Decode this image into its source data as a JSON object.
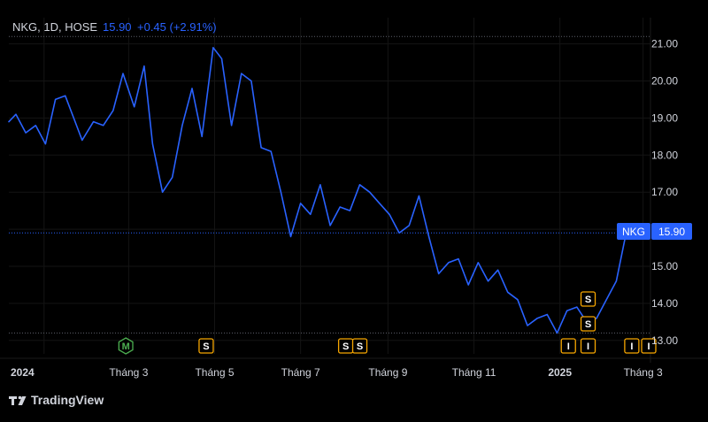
{
  "header": {
    "symbol_info": "NKG, 1D, HOSE",
    "last_price": "15.90",
    "change": "+0.45 (+2.91%)"
  },
  "price_tag": {
    "symbol": "NKG",
    "price": "15.90"
  },
  "branding": {
    "logo_text": "TradingView"
  },
  "colors": {
    "background": "#000000",
    "line": "#2962ff",
    "axis_text": "#d1d4dc",
    "grid": "#2a2e39",
    "event_orange": "#f7a600",
    "event_green": "#4caf50"
  },
  "chart_data": {
    "type": "line",
    "title": "NKG, 1D, HOSE",
    "xlabel": "",
    "ylabel": "",
    "ylim": [
      12.9,
      21.3
    ],
    "yticks": [
      13.0,
      14.0,
      15.0,
      16.0,
      17.0,
      18.0,
      19.0,
      20.0,
      21.0
    ],
    "xticks": [
      {
        "label": "2024",
        "date": "2024-01-01",
        "bold": true
      },
      {
        "label": "Tháng 3",
        "date": "2024-03-01",
        "bold": false
      },
      {
        "label": "Tháng 5",
        "date": "2024-05-01",
        "bold": false
      },
      {
        "label": "Tháng 7",
        "date": "2024-07-01",
        "bold": false
      },
      {
        "label": "Tháng 9",
        "date": "2024-09-01",
        "bold": false
      },
      {
        "label": "Tháng 11",
        "date": "2024-11-01",
        "bold": false
      },
      {
        "label": "2025",
        "date": "2025-01-01",
        "bold": true
      },
      {
        "label": "Tháng 3",
        "date": "2025-03-01",
        "bold": false
      }
    ],
    "x_range": [
      "2023-12-07",
      "2025-03-05"
    ],
    "grid": true,
    "reference_lines": [
      {
        "value": 21.2,
        "style": "dotted"
      },
      {
        "value": 15.9,
        "style": "dotted-blue"
      },
      {
        "value": 13.2,
        "style": "dotted"
      }
    ],
    "series": [
      {
        "x": [
          "2023-12-07",
          "2023-12-12",
          "2023-12-19",
          "2023-12-26",
          "2024-01-02",
          "2024-01-09",
          "2024-01-16",
          "2024-01-22",
          "2024-01-28",
          "2024-02-05",
          "2024-02-12",
          "2024-02-19",
          "2024-02-26",
          "2024-03-05",
          "2024-03-12",
          "2024-03-18",
          "2024-03-25",
          "2024-04-01",
          "2024-04-08",
          "2024-04-15",
          "2024-04-22",
          "2024-04-30",
          "2024-05-06",
          "2024-05-13",
          "2024-05-20",
          "2024-05-27",
          "2024-06-03",
          "2024-06-10",
          "2024-06-17",
          "2024-06-24",
          "2024-07-01",
          "2024-07-08",
          "2024-07-15",
          "2024-07-22",
          "2024-07-29",
          "2024-08-05",
          "2024-08-12",
          "2024-08-19",
          "2024-08-26",
          "2024-09-02",
          "2024-09-09",
          "2024-09-16",
          "2024-09-23",
          "2024-09-30",
          "2024-10-07",
          "2024-10-14",
          "2024-10-21",
          "2024-10-28",
          "2024-11-04",
          "2024-11-11",
          "2024-11-18",
          "2024-11-25",
          "2024-12-02",
          "2024-12-09",
          "2024-12-16",
          "2024-12-23",
          "2024-12-30",
          "2025-01-06",
          "2025-01-13",
          "2025-01-20",
          "2025-01-27",
          "2025-02-03",
          "2025-02-10",
          "2025-02-17",
          "2025-02-24",
          "2025-03-03"
        ],
        "values": [
          18.9,
          19.1,
          18.6,
          18.8,
          18.3,
          19.5,
          19.6,
          19.0,
          18.4,
          18.9,
          18.8,
          19.2,
          20.2,
          19.3,
          20.4,
          18.3,
          17.0,
          17.4,
          18.8,
          19.8,
          18.5,
          20.9,
          20.6,
          18.8,
          20.2,
          20.0,
          18.2,
          18.1,
          17.0,
          15.8,
          16.7,
          16.4,
          17.2,
          16.1,
          16.6,
          16.5,
          17.2,
          17.0,
          16.7,
          16.4,
          15.9,
          16.1,
          16.9,
          15.8,
          14.8,
          15.1,
          15.2,
          14.5,
          15.1,
          14.6,
          14.9,
          14.3,
          14.1,
          13.4,
          13.6,
          13.7,
          13.2,
          13.8,
          13.9,
          13.5,
          13.6,
          14.1,
          14.6,
          15.9,
          15.9,
          15.9
        ]
      }
    ],
    "events": [
      {
        "label": "M",
        "date": "2024-02-28",
        "color": "green",
        "row": 0
      },
      {
        "label": "S",
        "date": "2024-04-25",
        "color": "orange",
        "row": 0
      },
      {
        "label": "S",
        "date": "2024-08-02",
        "color": "orange",
        "row": 0
      },
      {
        "label": "S",
        "date": "2024-08-12",
        "color": "orange",
        "row": 0
      },
      {
        "label": "S",
        "date": "2025-01-21",
        "color": "orange",
        "row": 2
      },
      {
        "label": "S",
        "date": "2025-01-21",
        "color": "orange",
        "row": 1
      },
      {
        "label": "I",
        "date": "2025-01-07",
        "color": "orange",
        "row": 0
      },
      {
        "label": "I",
        "date": "2025-01-21",
        "color": "orange",
        "row": 0
      },
      {
        "label": "I",
        "date": "2025-02-21",
        "color": "orange",
        "row": 0
      },
      {
        "label": "I",
        "date": "2025-03-05",
        "color": "orange",
        "row": 0
      }
    ]
  }
}
